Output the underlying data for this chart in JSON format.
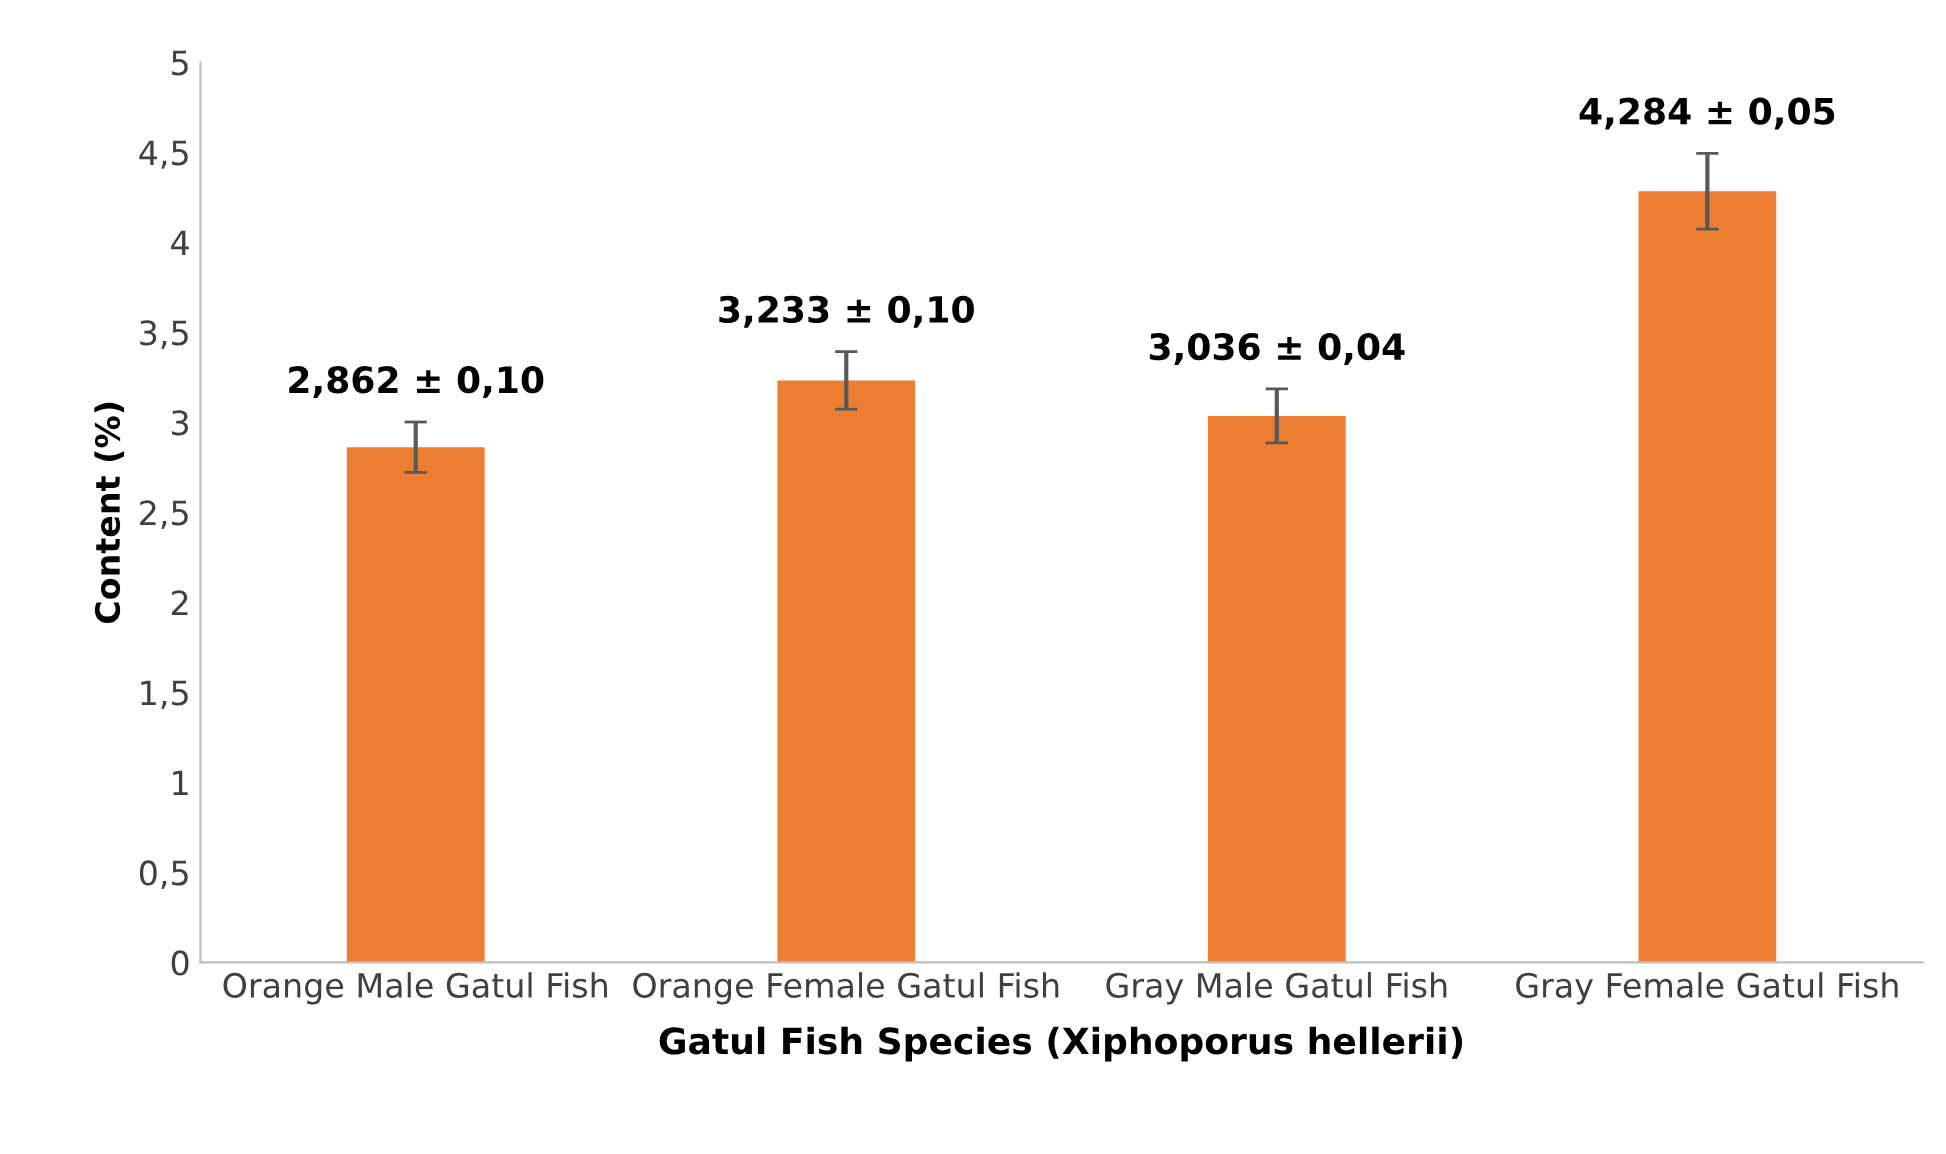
{
  "chart_data": {
    "type": "bar",
    "categories": [
      "Orange Male Gatul Fish",
      "Orange Female Gatul Fish",
      "Gray Male Gatul Fish",
      "Gray Female Gatul Fish"
    ],
    "values": [
      2.862,
      3.233,
      3.036,
      4.284
    ],
    "errors": [
      0.14,
      0.16,
      0.15,
      0.21
    ],
    "value_labels": [
      "2,862 ± 0,10",
      "3,233 ± 0,10",
      "3,036 ± 0,04",
      "4,284 ± 0,05"
    ],
    "color": "#ed7d31",
    "xlabel": "Gatul Fish Species (Xiphoporus hellerii)",
    "ylabel": "Content (%)",
    "ylim": [
      0,
      5
    ],
    "yticks": [
      0,
      {
        "value": 0.5,
        "label": "0,5"
      },
      1,
      {
        "value": 1.5,
        "label": "1,5"
      },
      2,
      {
        "value": 2.5,
        "label": "2,5"
      },
      3,
      {
        "value": 3.5,
        "label": "3,5"
      },
      4,
      {
        "value": 4.5,
        "label": "4,5"
      },
      5
    ],
    "grid": false,
    "legend": false
  }
}
